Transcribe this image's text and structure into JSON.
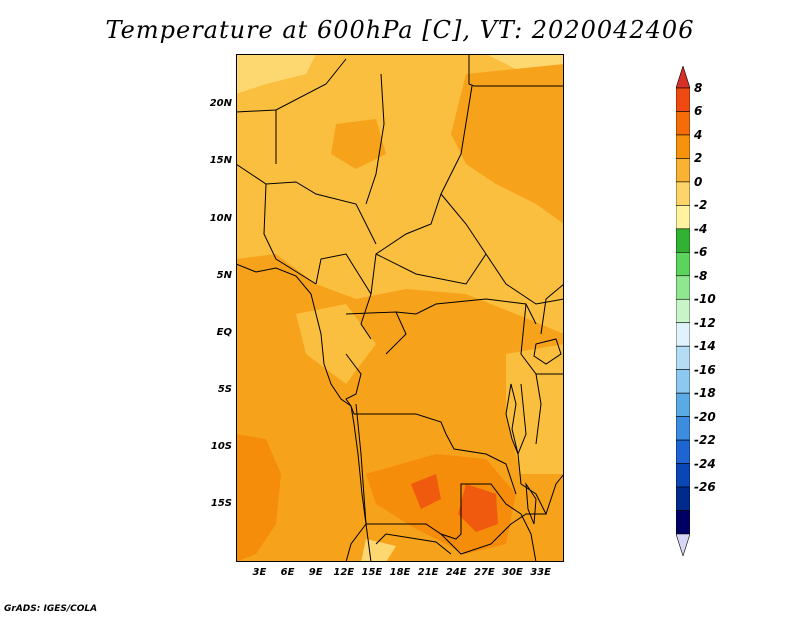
{
  "title": "Temperature at 600hPa [C], VT: 2020042406",
  "credit": "GrADS: IGES/COLA",
  "lat_labels": [
    "20N",
    "15N",
    "10N",
    "5N",
    "EQ",
    "5S",
    "10S",
    "15S"
  ],
  "lat_values": [
    20,
    15,
    10,
    5,
    0,
    -5,
    -10,
    -15
  ],
  "lon_labels": [
    "3E",
    "6E",
    "9E",
    "12E",
    "15E",
    "18E",
    "21E",
    "24E",
    "27E",
    "30E",
    "33E"
  ],
  "lon_values": [
    3,
    6,
    9,
    12,
    15,
    18,
    21,
    24,
    27,
    30,
    33
  ],
  "extent": {
    "lon": [
      0.5,
      35.5
    ],
    "lat": [
      -20.0,
      24.5
    ]
  },
  "colorbar": {
    "labels": [
      "8",
      "6",
      "4",
      "2",
      "0",
      "-2",
      "-4",
      "-6",
      "-8",
      "-10",
      "-12",
      "-14",
      "-16",
      "-18",
      "-20",
      "-22",
      "-24",
      "-26"
    ],
    "colors": [
      "#d73027",
      "#ee4a12",
      "#f46d0a",
      "#f7920d",
      "#fab234",
      "#fdd46a",
      "#fff2a0",
      "#32b232",
      "#5cd35c",
      "#8fe88f",
      "#c8f5c8",
      "#e0f2fb",
      "#b4dcf5",
      "#8cc8f0",
      "#5aaae6",
      "#3c8ce0",
      "#1e64d2",
      "#0a46b4",
      "#002a8c",
      "#000064",
      "#d7d7f5"
    ]
  },
  "palette": {
    "t6": "#f05a0f",
    "t4": "#f58c0a",
    "t2": "#f7a21b",
    "t0": "#fabf3e",
    "tm2": "#fdd871",
    "border": "#000000"
  }
}
